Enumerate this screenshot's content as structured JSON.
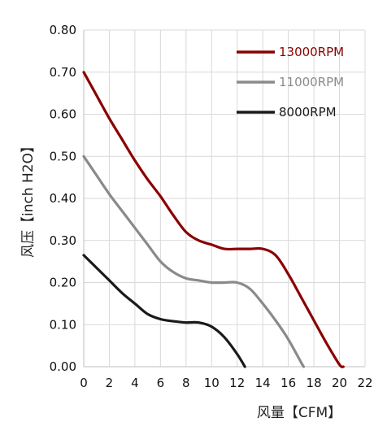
{
  "chart_data": {
    "type": "line",
    "title": "",
    "xlabel": "风量【CFM】",
    "ylabel": "风压【inch H2O】",
    "xlim": [
      0,
      22
    ],
    "ylim": [
      0,
      0.8
    ],
    "x_ticks": [
      "0",
      "2",
      "4",
      "6",
      "8",
      "10",
      "12",
      "14",
      "16",
      "18",
      "20",
      "22"
    ],
    "y_ticks": [
      "0.00",
      "0.10",
      "0.20",
      "0.30",
      "0.40",
      "0.50",
      "0.60",
      "0.70",
      "0.80"
    ],
    "grid": "on",
    "legend_position": "top-right",
    "series": [
      {
        "name": "13000RPM",
        "color": "#8b0000",
        "points": [
          [
            0,
            0.7
          ],
          [
            1,
            0.645
          ],
          [
            2,
            0.59
          ],
          [
            3,
            0.54
          ],
          [
            4,
            0.49
          ],
          [
            5,
            0.445
          ],
          [
            6,
            0.405
          ],
          [
            7,
            0.36
          ],
          [
            8,
            0.32
          ],
          [
            9,
            0.3
          ],
          [
            10,
            0.29
          ],
          [
            11,
            0.28
          ],
          [
            12,
            0.28
          ],
          [
            13,
            0.28
          ],
          [
            14,
            0.28
          ],
          [
            15,
            0.265
          ],
          [
            16,
            0.22
          ],
          [
            17,
            0.165
          ],
          [
            18,
            0.11
          ],
          [
            19,
            0.055
          ],
          [
            20,
            0.005
          ],
          [
            20.3,
            0.0
          ]
        ]
      },
      {
        "name": "11000RPM",
        "color": "#8a8a8a",
        "points": [
          [
            0,
            0.5
          ],
          [
            1,
            0.455
          ],
          [
            2,
            0.41
          ],
          [
            3,
            0.37
          ],
          [
            4,
            0.33
          ],
          [
            5,
            0.29
          ],
          [
            6,
            0.25
          ],
          [
            7,
            0.225
          ],
          [
            8,
            0.21
          ],
          [
            9,
            0.205
          ],
          [
            10,
            0.2
          ],
          [
            11,
            0.2
          ],
          [
            12,
            0.2
          ],
          [
            13,
            0.185
          ],
          [
            14,
            0.15
          ],
          [
            15,
            0.11
          ],
          [
            16,
            0.065
          ],
          [
            17,
            0.01
          ],
          [
            17.2,
            0.0
          ]
        ]
      },
      {
        "name": "8000RPM",
        "color": "#1a1a1a",
        "points": [
          [
            0,
            0.265
          ],
          [
            1,
            0.235
          ],
          [
            2,
            0.205
          ],
          [
            3,
            0.175
          ],
          [
            4,
            0.15
          ],
          [
            5,
            0.125
          ],
          [
            6,
            0.113
          ],
          [
            7,
            0.108
          ],
          [
            8,
            0.105
          ],
          [
            9,
            0.105
          ],
          [
            10,
            0.095
          ],
          [
            11,
            0.07
          ],
          [
            12,
            0.03
          ],
          [
            12.6,
            0.0
          ]
        ]
      }
    ]
  }
}
